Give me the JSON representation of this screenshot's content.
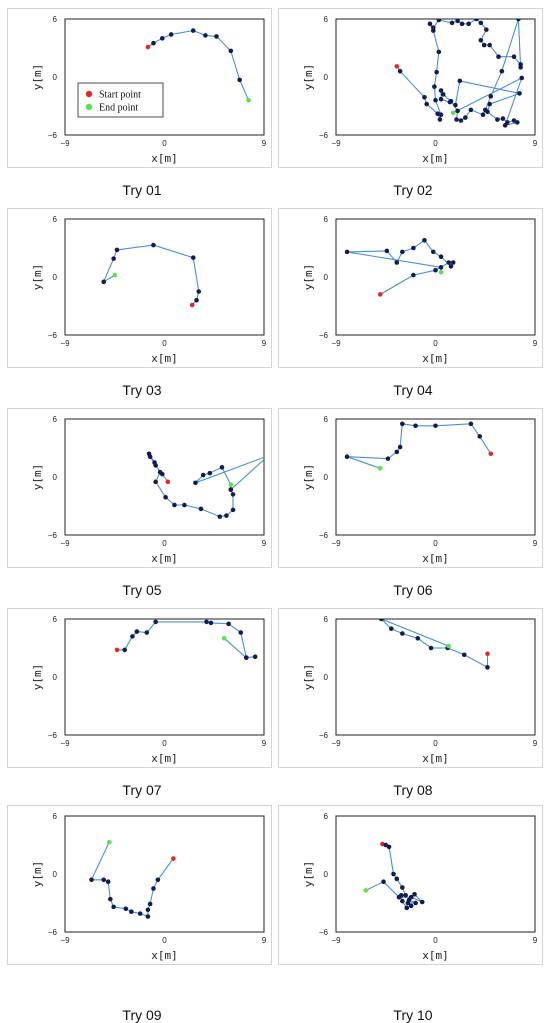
{
  "legend": {
    "start_label": "Start point",
    "end_label": "End point"
  },
  "colors": {
    "path": "#4a8fd6",
    "point": "#141c4e",
    "start": "#e8262a",
    "end": "#5ce14c"
  },
  "chart_data": [
    {
      "type": "scatter",
      "caption": "Try 01",
      "xlabel": "x[m]",
      "ylabel": "y[m]",
      "xlim": [
        -9,
        9
      ],
      "ylim": [
        -6,
        6
      ],
      "xticks": [
        -9,
        0,
        9
      ],
      "yticks": [
        6,
        0,
        -6
      ],
      "grid": false,
      "legend": true,
      "x": [
        -1.5,
        -1.0,
        -0.2,
        0.6,
        2.6,
        3.7,
        4.7,
        6.0,
        6.8,
        7.6
      ],
      "y": [
        3.1,
        3.5,
        4.0,
        4.4,
        4.8,
        4.3,
        4.2,
        2.7,
        -0.3,
        -2.4
      ]
    },
    {
      "type": "scatter",
      "caption": "Try 02",
      "xlabel": "x[m]",
      "ylabel": "y[m]",
      "xlim": [
        -9,
        9
      ],
      "ylim": [
        -6,
        6
      ],
      "xticks": [
        -9,
        0,
        9
      ],
      "yticks": [
        6,
        0,
        -6
      ],
      "grid": false,
      "legend": false,
      "x": [
        -3.5,
        -3.2,
        -1.0,
        -0.8,
        0.2,
        0.4,
        0.5,
        0.0,
        -0.1,
        0.1,
        0.3,
        -0.2,
        -0.5,
        -0.2,
        0.3,
        1.5,
        2.0,
        2.4,
        3.0,
        3.7,
        4.1,
        4.6,
        4.1,
        4.4,
        4.9,
        5.7,
        7.1,
        7.7,
        7.7,
        7.5,
        6.0,
        5.0,
        4.5,
        4.3,
        3.2,
        2.7,
        2.3,
        1.9,
        2.0,
        1.4,
        0.7,
        0.5,
        0.5,
        1.3,
        1.8,
        2.2,
        7.6,
        4.9,
        4.7,
        5.6,
        6.1,
        6.5,
        7.1,
        7.4,
        6.3,
        7.8,
        1.6
      ],
      "y": [
        1.1,
        0.6,
        -2.1,
        -2.8,
        -3.8,
        -4.4,
        -3.9,
        -2.4,
        -1.0,
        0.5,
        2.6,
        4.8,
        5.5,
        5.1,
        5.9,
        5.6,
        5.8,
        5.5,
        5.5,
        6.0,
        5.6,
        4.9,
        3.8,
        3.3,
        3.3,
        2.1,
        2.1,
        1.3,
        1.0,
        6.0,
        0.6,
        -2.0,
        -3.4,
        -3.9,
        -3.4,
        -4.2,
        -4.5,
        -4.4,
        -3.5,
        -2.5,
        -1.8,
        -1.4,
        -2.3,
        -2.6,
        -2.9,
        -0.4,
        -1.7,
        -2.8,
        -3.6,
        -4.4,
        -4.3,
        -4.7,
        -4.5,
        -4.7,
        -5.0,
        -0.1,
        -3.7
      ]
    },
    {
      "type": "scatter",
      "caption": "Try 03",
      "xlabel": "x[m]",
      "ylabel": "y[m]",
      "xlim": [
        -9,
        9
      ],
      "ylim": [
        -6,
        6
      ],
      "xticks": [
        -9,
        0,
        9
      ],
      "yticks": [
        6,
        0,
        -6
      ],
      "grid": false,
      "legend": false,
      "x": [
        2.5,
        2.9,
        3.1,
        2.6,
        -1.0,
        -4.3,
        -4.6,
        -5.5,
        -4.5
      ],
      "y": [
        -2.9,
        -2.4,
        -1.5,
        2.0,
        3.3,
        2.8,
        1.9,
        -0.5,
        0.2
      ]
    },
    {
      "type": "scatter",
      "caption": "Try 04",
      "xlabel": "x[m]",
      "ylabel": "y[m]",
      "xlim": [
        -9,
        9
      ],
      "ylim": [
        -6,
        6
      ],
      "xticks": [
        -9,
        0,
        9
      ],
      "yticks": [
        6,
        0,
        -6
      ],
      "grid": false,
      "legend": false,
      "x": [
        -5.0,
        -2.0,
        0.0,
        1.2,
        1.6,
        1.4,
        0.5,
        -0.2,
        -1.0,
        -2.0,
        -3.0,
        -3.5,
        -4.4,
        -8.0,
        0.5,
        0.5
      ],
      "y": [
        -1.8,
        0.2,
        0.7,
        1.5,
        1.5,
        1.1,
        2.1,
        2.6,
        3.8,
        3.0,
        2.6,
        1.5,
        2.7,
        2.6,
        1.0,
        0.5
      ]
    },
    {
      "type": "scatter",
      "caption": "Try 05",
      "xlabel": "x[m]",
      "ylabel": "y[m]",
      "xlim": [
        -9,
        9
      ],
      "ylim": [
        -6,
        6
      ],
      "xticks": [
        -9,
        0,
        9
      ],
      "yticks": [
        6,
        0,
        -6
      ],
      "grid": false,
      "legend": false,
      "x": [
        0.3,
        -0.2,
        -0.8,
        -1.3,
        -1.4,
        -0.9,
        -0.4,
        -0.8,
        0.1,
        0.9,
        1.8,
        3.3,
        5.0,
        5.6,
        6.2,
        6.2,
        6.0,
        6.0,
        9.4,
        2.8,
        3.5,
        4.1,
        5.2,
        6.0
      ],
      "y": [
        -0.5,
        0.3,
        1.2,
        2.1,
        2.4,
        1.5,
        0.5,
        -0.5,
        -2.1,
        -2.9,
        -2.9,
        -3.3,
        -4.1,
        -4.0,
        -3.4,
        -1.8,
        -1.3,
        -1.3,
        2.2,
        -0.6,
        0.2,
        0.4,
        1.0,
        -0.8
      ]
    },
    {
      "type": "scatter",
      "caption": "Try 06",
      "xlabel": "x[m]",
      "ylabel": "y[m]",
      "xlim": [
        -9,
        9
      ],
      "ylim": [
        -6,
        6
      ],
      "xticks": [
        -9,
        0,
        9
      ],
      "yticks": [
        6,
        0,
        -6
      ],
      "grid": false,
      "legend": false,
      "x": [
        5.0,
        4.0,
        3.2,
        0.0,
        -1.8,
        -3.0,
        -3.2,
        -3.5,
        -4.3,
        -8.0,
        -5.0
      ],
      "y": [
        2.4,
        4.2,
        5.5,
        5.3,
        5.3,
        5.5,
        3.1,
        2.6,
        1.9,
        2.1,
        0.9
      ]
    },
    {
      "type": "scatter",
      "caption": "Try 07",
      "xlabel": "x[m]",
      "ylabel": "y[m]",
      "xlim": [
        -9,
        9
      ],
      "ylim": [
        -6,
        6
      ],
      "xticks": [
        -9,
        0,
        9
      ],
      "yticks": [
        6,
        0,
        -6
      ],
      "grid": false,
      "legend": false,
      "x": [
        -4.3,
        -3.6,
        -2.9,
        -2.5,
        -1.6,
        -0.8,
        3.8,
        4.2,
        5.8,
        6.9,
        7.4,
        8.2,
        7.4,
        5.4
      ],
      "y": [
        2.8,
        2.8,
        4.2,
        4.7,
        4.6,
        5.7,
        5.7,
        5.6,
        5.5,
        4.6,
        2.0,
        2.1,
        2.0,
        4.0
      ]
    },
    {
      "type": "scatter",
      "caption": "Try 08",
      "xlabel": "x[m]",
      "ylabel": "y[m]",
      "xlim": [
        -9,
        9
      ],
      "ylim": [
        -6,
        6
      ],
      "xticks": [
        -9,
        0,
        9
      ],
      "yticks": [
        6,
        0,
        -6
      ],
      "grid": false,
      "legend": false,
      "x": [
        4.7,
        4.7,
        2.6,
        1.1,
        -0.4,
        -1.6,
        -3.0,
        -4.0,
        -4.9,
        1.2
      ],
      "y": [
        2.4,
        1.0,
        2.3,
        3.0,
        3.0,
        4.0,
        4.5,
        5.0,
        6.0,
        3.2
      ]
    },
    {
      "type": "scatter",
      "caption": "Try 09",
      "xlabel": "x[m]",
      "ylabel": "y[m]",
      "xlim": [
        -9,
        9
      ],
      "ylim": [
        -6,
        6
      ],
      "xticks": [
        -9,
        0,
        9
      ],
      "yticks": [
        6,
        0,
        -6
      ],
      "grid": false,
      "legend": false,
      "x": [
        0.8,
        -0.6,
        -1.0,
        -1.3,
        -1.5,
        -1.5,
        -2.2,
        -3.0,
        -3.5,
        -4.6,
        -4.9,
        -5.1,
        -5.5,
        -6.6,
        -5.0
      ],
      "y": [
        1.6,
        -0.6,
        -1.5,
        -3.1,
        -3.7,
        -4.4,
        -4.1,
        -3.9,
        -3.6,
        -3.4,
        -2.6,
        -0.8,
        -0.6,
        -0.6,
        3.3
      ]
    },
    {
      "type": "scatter",
      "caption": "Try 10",
      "xlabel": "x[m]",
      "ylabel": "y[m]",
      "xlim": [
        -9,
        9
      ],
      "ylim": [
        -6,
        6
      ],
      "xticks": [
        -9,
        0,
        9
      ],
      "yticks": [
        6,
        0,
        -6
      ],
      "grid": false,
      "legend": false,
      "x": [
        -4.8,
        -4.5,
        -4.2,
        -3.8,
        -3.5,
        -3.0,
        -2.7,
        -3.1,
        -3.0,
        -2.6,
        -2.2,
        -2.5,
        -1.8,
        -2.4,
        -1.9,
        -1.2,
        -2.2,
        -3.3,
        -4.7,
        -6.3
      ],
      "y": [
        3.1,
        3.0,
        2.8,
        0.0,
        -0.5,
        -1.4,
        -2.2,
        -2.2,
        -2.8,
        -3.5,
        -3.3,
        -3.0,
        -3.0,
        -2.7,
        -2.1,
        -2.9,
        -2.4,
        -2.4,
        -0.8,
        -1.7
      ]
    }
  ]
}
